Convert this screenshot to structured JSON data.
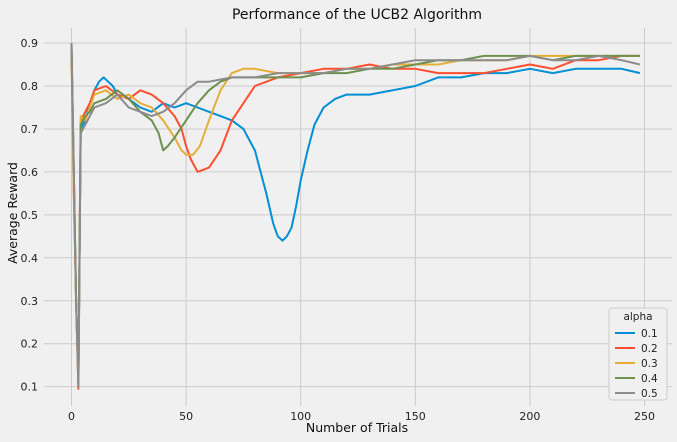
{
  "chart_data": {
    "type": "line",
    "title": "Performance of the UCB2 Algorithm",
    "xlabel": "Number of Trials",
    "ylabel": "Average Reward",
    "xlim": [
      -12,
      262
    ],
    "ylim": [
      0.055,
      0.935
    ],
    "xticks": [
      0,
      50,
      100,
      150,
      200,
      250
    ],
    "yticks": [
      0.1,
      0.2,
      0.3,
      0.4,
      0.5,
      0.6,
      0.7,
      0.8,
      0.9
    ],
    "grid": true,
    "legend": {
      "title": "alpha",
      "position": "bottom-right"
    },
    "series": [
      {
        "name": "0.1",
        "color": "#008fd5",
        "points": [
          [
            0,
            0.9
          ],
          [
            1,
            0.6
          ],
          [
            2,
            0.3
          ],
          [
            3,
            0.12
          ],
          [
            4,
            0.7
          ],
          [
            6,
            0.72
          ],
          [
            8,
            0.76
          ],
          [
            10,
            0.79
          ],
          [
            12,
            0.81
          ],
          [
            14,
            0.82
          ],
          [
            16,
            0.81
          ],
          [
            18,
            0.8
          ],
          [
            20,
            0.78
          ],
          [
            25,
            0.77
          ],
          [
            30,
            0.75
          ],
          [
            35,
            0.74
          ],
          [
            40,
            0.76
          ],
          [
            45,
            0.75
          ],
          [
            50,
            0.76
          ],
          [
            55,
            0.75
          ],
          [
            60,
            0.74
          ],
          [
            65,
            0.73
          ],
          [
            70,
            0.72
          ],
          [
            75,
            0.7
          ],
          [
            80,
            0.65
          ],
          [
            85,
            0.55
          ],
          [
            88,
            0.48
          ],
          [
            90,
            0.45
          ],
          [
            92,
            0.44
          ],
          [
            94,
            0.45
          ],
          [
            96,
            0.47
          ],
          [
            98,
            0.52
          ],
          [
            100,
            0.58
          ],
          [
            103,
            0.65
          ],
          [
            106,
            0.71
          ],
          [
            110,
            0.75
          ],
          [
            115,
            0.77
          ],
          [
            120,
            0.78
          ],
          [
            130,
            0.78
          ],
          [
            140,
            0.79
          ],
          [
            150,
            0.8
          ],
          [
            160,
            0.82
          ],
          [
            170,
            0.82
          ],
          [
            180,
            0.83
          ],
          [
            190,
            0.83
          ],
          [
            200,
            0.84
          ],
          [
            210,
            0.83
          ],
          [
            220,
            0.84
          ],
          [
            230,
            0.84
          ],
          [
            240,
            0.84
          ],
          [
            248,
            0.83
          ]
        ]
      },
      {
        "name": "0.2",
        "color": "#fc4f30",
        "points": [
          [
            0,
            0.88
          ],
          [
            1,
            0.55
          ],
          [
            2,
            0.3
          ],
          [
            3,
            0.095
          ],
          [
            4,
            0.72
          ],
          [
            6,
            0.74
          ],
          [
            8,
            0.76
          ],
          [
            10,
            0.79
          ],
          [
            15,
            0.8
          ],
          [
            20,
            0.78
          ],
          [
            25,
            0.77
          ],
          [
            30,
            0.79
          ],
          [
            35,
            0.78
          ],
          [
            40,
            0.76
          ],
          [
            45,
            0.73
          ],
          [
            48,
            0.7
          ],
          [
            50,
            0.66
          ],
          [
            52,
            0.63
          ],
          [
            55,
            0.6
          ],
          [
            60,
            0.61
          ],
          [
            65,
            0.65
          ],
          [
            70,
            0.72
          ],
          [
            75,
            0.76
          ],
          [
            80,
            0.8
          ],
          [
            90,
            0.82
          ],
          [
            100,
            0.83
          ],
          [
            110,
            0.84
          ],
          [
            120,
            0.84
          ],
          [
            130,
            0.85
          ],
          [
            140,
            0.84
          ],
          [
            150,
            0.84
          ],
          [
            160,
            0.83
          ],
          [
            170,
            0.83
          ],
          [
            180,
            0.83
          ],
          [
            190,
            0.84
          ],
          [
            200,
            0.85
          ],
          [
            210,
            0.84
          ],
          [
            220,
            0.86
          ],
          [
            230,
            0.86
          ],
          [
            240,
            0.87
          ],
          [
            248,
            0.87
          ]
        ]
      },
      {
        "name": "0.3",
        "color": "#e5ae38",
        "points": [
          [
            0,
            0.87
          ],
          [
            1,
            0.55
          ],
          [
            2,
            0.3
          ],
          [
            3,
            0.1
          ],
          [
            4,
            0.73
          ],
          [
            6,
            0.72
          ],
          [
            8,
            0.75
          ],
          [
            10,
            0.78
          ],
          [
            15,
            0.79
          ],
          [
            20,
            0.77
          ],
          [
            25,
            0.78
          ],
          [
            30,
            0.76
          ],
          [
            35,
            0.75
          ],
          [
            40,
            0.72
          ],
          [
            45,
            0.68
          ],
          [
            48,
            0.65
          ],
          [
            50,
            0.64
          ],
          [
            53,
            0.64
          ],
          [
            56,
            0.66
          ],
          [
            60,
            0.72
          ],
          [
            65,
            0.79
          ],
          [
            70,
            0.83
          ],
          [
            75,
            0.84
          ],
          [
            80,
            0.84
          ],
          [
            90,
            0.83
          ],
          [
            100,
            0.83
          ],
          [
            110,
            0.83
          ],
          [
            120,
            0.84
          ],
          [
            130,
            0.84
          ],
          [
            140,
            0.85
          ],
          [
            150,
            0.85
          ],
          [
            160,
            0.85
          ],
          [
            170,
            0.86
          ],
          [
            180,
            0.86
          ],
          [
            190,
            0.86
          ],
          [
            200,
            0.87
          ],
          [
            210,
            0.87
          ],
          [
            220,
            0.87
          ],
          [
            230,
            0.87
          ],
          [
            240,
            0.87
          ],
          [
            248,
            0.87
          ]
        ]
      },
      {
        "name": "0.4",
        "color": "#6d904f",
        "points": [
          [
            0,
            0.89
          ],
          [
            1,
            0.6
          ],
          [
            2,
            0.3
          ],
          [
            3,
            0.12
          ],
          [
            4,
            0.71
          ],
          [
            6,
            0.73
          ],
          [
            8,
            0.74
          ],
          [
            10,
            0.76
          ],
          [
            15,
            0.77
          ],
          [
            20,
            0.79
          ],
          [
            25,
            0.77
          ],
          [
            30,
            0.74
          ],
          [
            35,
            0.72
          ],
          [
            38,
            0.69
          ],
          [
            40,
            0.65
          ],
          [
            42,
            0.66
          ],
          [
            45,
            0.68
          ],
          [
            50,
            0.72
          ],
          [
            55,
            0.76
          ],
          [
            60,
            0.79
          ],
          [
            65,
            0.81
          ],
          [
            70,
            0.82
          ],
          [
            80,
            0.82
          ],
          [
            90,
            0.82
          ],
          [
            100,
            0.82
          ],
          [
            110,
            0.83
          ],
          [
            120,
            0.83
          ],
          [
            130,
            0.84
          ],
          [
            140,
            0.84
          ],
          [
            150,
            0.85
          ],
          [
            160,
            0.86
          ],
          [
            170,
            0.86
          ],
          [
            180,
            0.87
          ],
          [
            190,
            0.87
          ],
          [
            200,
            0.87
          ],
          [
            210,
            0.86
          ],
          [
            220,
            0.87
          ],
          [
            230,
            0.87
          ],
          [
            240,
            0.87
          ],
          [
            248,
            0.87
          ]
        ]
      },
      {
        "name": "0.5",
        "color": "#8b8b8b",
        "points": [
          [
            0,
            0.9
          ],
          [
            1,
            0.6
          ],
          [
            2,
            0.3
          ],
          [
            3,
            0.1
          ],
          [
            4,
            0.69
          ],
          [
            6,
            0.71
          ],
          [
            8,
            0.73
          ],
          [
            10,
            0.75
          ],
          [
            15,
            0.76
          ],
          [
            20,
            0.78
          ],
          [
            25,
            0.75
          ],
          [
            30,
            0.74
          ],
          [
            35,
            0.73
          ],
          [
            40,
            0.74
          ],
          [
            45,
            0.76
          ],
          [
            50,
            0.79
          ],
          [
            55,
            0.81
          ],
          [
            60,
            0.81
          ],
          [
            70,
            0.82
          ],
          [
            80,
            0.82
          ],
          [
            90,
            0.83
          ],
          [
            100,
            0.83
          ],
          [
            110,
            0.83
          ],
          [
            120,
            0.84
          ],
          [
            130,
            0.84
          ],
          [
            140,
            0.85
          ],
          [
            150,
            0.86
          ],
          [
            160,
            0.86
          ],
          [
            170,
            0.86
          ],
          [
            180,
            0.86
          ],
          [
            190,
            0.86
          ],
          [
            200,
            0.87
          ],
          [
            210,
            0.86
          ],
          [
            220,
            0.86
          ],
          [
            230,
            0.87
          ],
          [
            240,
            0.86
          ],
          [
            248,
            0.85
          ]
        ]
      }
    ]
  }
}
